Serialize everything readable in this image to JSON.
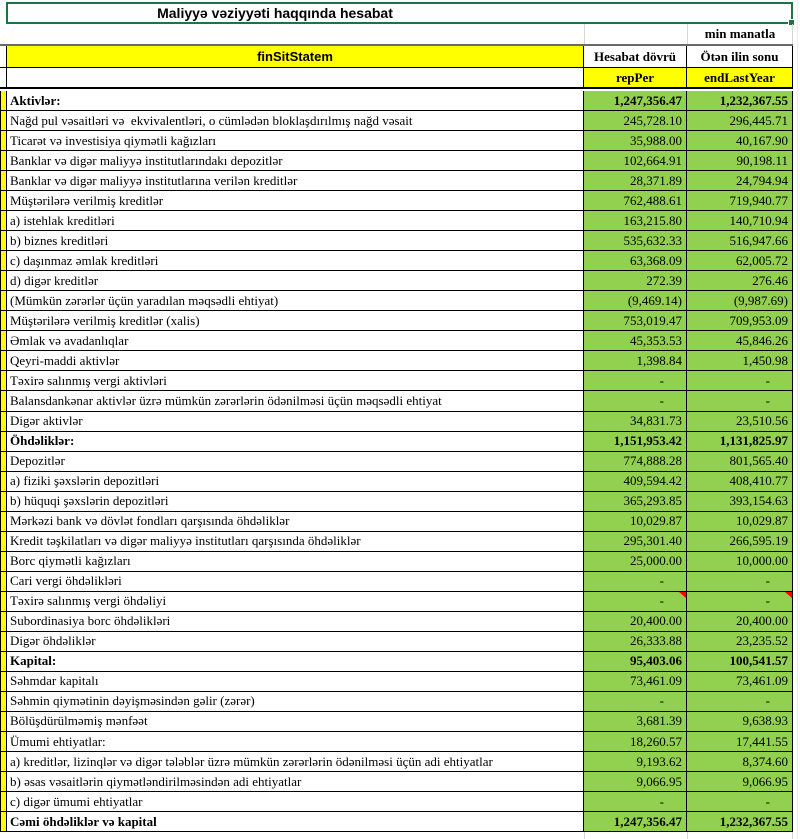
{
  "title": "Maliyyə vəziyyəti haqqında hesabat",
  "unit_note": "min manatla",
  "table": {
    "id_header": "finSitStatem",
    "col1_header": "Hesabat dövrü",
    "col2_header": "Ötən ilin sonu",
    "col1_code": "repPer",
    "col2_code": "endLastYear",
    "rows": [
      {
        "label": "Aktivlər:",
        "v1": "1,247,356.47",
        "v2": "1,232,367.55",
        "section": true
      },
      {
        "label": "Nağd pul vəsaitləri və  ekvivalentləri, o cümlədən bloklaşdırılmış nağd vəsait",
        "v1": "245,728.10",
        "v2": "296,445.71"
      },
      {
        "label": "Ticarət və investisiya qiymətli kağızları",
        "v1": "35,988.00",
        "v2": "40,167.90"
      },
      {
        "label": "Banklar və digər maliyyə institutlarındakı depozitlər",
        "v1": "102,664.91",
        "v2": "90,198.11"
      },
      {
        "label": "Banklar və digər maliyyə institutlarına verilən kreditlər",
        "v1": "28,371.89",
        "v2": "24,794.94"
      },
      {
        "label": "Müştərilərə verilmiş kreditlər",
        "v1": "762,488.61",
        "v2": "719,940.77"
      },
      {
        "label": "a) istehlak kreditləri",
        "v1": "163,215.80",
        "v2": "140,710.94"
      },
      {
        "label": "b) biznes kreditləri",
        "v1": "535,632.33",
        "v2": "516,947.66"
      },
      {
        "label": "c) daşınmaz əmlak kreditləri",
        "v1": "63,368.09",
        "v2": "62,005.72"
      },
      {
        "label": "d) digər kreditlər",
        "v1": "272.39",
        "v2": "276.46"
      },
      {
        "label": "(Mümkün zərərlər üçün yaradılan məqsədli ehtiyat)",
        "v1": "(9,469.14)",
        "v2": "(9,987.69)"
      },
      {
        "label": "Müştərilərə verilmiş kreditlər (xalis)",
        "v1": "753,019.47",
        "v2": "709,953.09"
      },
      {
        "label": "Əmlak və avadanlıqlar",
        "v1": "45,353.53",
        "v2": "45,846.26"
      },
      {
        "label": "Qeyri-maddi aktivlər",
        "v1": "1,398.84",
        "v2": "1,450.98"
      },
      {
        "label": "Təxirə salınmış vergi aktivləri",
        "v1": "-",
        "v2": "-"
      },
      {
        "label": "Balansdankənar aktivlər üzrə mümkün zərərlərin ödənilməsi üçün məqsədli ehtiyat",
        "v1": "-",
        "v2": "-"
      },
      {
        "label": "Digər aktivlər",
        "v1": "34,831.73",
        "v2": "23,510.56"
      },
      {
        "label": "Öhdəliklər:",
        "v1": "1,151,953.42",
        "v2": "1,131,825.97",
        "section": true
      },
      {
        "label": "Depozitlər",
        "v1": "774,888.28",
        "v2": "801,565.40"
      },
      {
        "label": "a) fiziki şəxslərin depozitləri",
        "v1": "409,594.42",
        "v2": "408,410.77"
      },
      {
        "label": "b) hüquqi şəxslərin depozitləri",
        "v1": "365,293.85",
        "v2": "393,154.63"
      },
      {
        "label": "Mərkəzi bank və dövlət fondları qarşısında öhdəliklər",
        "v1": "10,029.87",
        "v2": "10,029.87"
      },
      {
        "label": "Kredit təşkilatları və digər maliyyə institutları qarşısında öhdəliklər",
        "v1": "295,301.40",
        "v2": "266,595.19"
      },
      {
        "label": "Borc qiymətli kağızları",
        "v1": "25,000.00",
        "v2": "10,000.00"
      },
      {
        "label": "Cari vergi öhdəlikləri",
        "v1": "-",
        "v2": "-"
      },
      {
        "label": "Təxirə salınmış vergi öhdəliyi",
        "v1": "-",
        "v2": "-",
        "comment_marker": true
      },
      {
        "label": "Subordinasiya borc öhdəlikləri",
        "v1": "20,400.00",
        "v2": "20,400.00"
      },
      {
        "label": "Digər öhdəliklər",
        "v1": "26,333.88",
        "v2": "23,235.52"
      },
      {
        "label": "Kapital:",
        "v1": "95,403.06",
        "v2": "100,541.57",
        "section": true
      },
      {
        "label": "Səhmdar kapitalı",
        "v1": "73,461.09",
        "v2": "73,461.09"
      },
      {
        "label": "Səhmin qiymətinin dəyişməsindən gəlir (zərər)",
        "v1": "-",
        "v2": "-"
      },
      {
        "label": "Bölüşdürülməmiş mənfəət",
        "v1": "3,681.39",
        "v2": "9,638.93"
      },
      {
        "label": "Ümumi ehtiyatlar:",
        "v1": "18,260.57",
        "v2": "17,441.55"
      },
      {
        "label": "a) kreditlər, lizinqlər və digər tələblər üzrə mümkün zərərlərin ödənilməsi üçün adi ehtiyatlar",
        "v1": "9,193.62",
        "v2": "8,374.60"
      },
      {
        "label": "b) əsas vəsaitlərin qiymətləndirilməsindən adi ehtiyatlar",
        "v1": "9,066.95",
        "v2": "9,066.95"
      },
      {
        "label": "c) digər ümumi ehtiyatlar",
        "v1": "-",
        "v2": "-"
      },
      {
        "label": "Cəmi öhdəliklər və kapital",
        "v1": "1,247,356.47",
        "v2": "1,232,367.55",
        "section": true
      }
    ]
  },
  "colors": {
    "cell_green": "#92D050",
    "header_yellow": "#FFFF00",
    "selection_green": "#217346",
    "comment_red": "#FF0000",
    "border_black": "#000000"
  }
}
